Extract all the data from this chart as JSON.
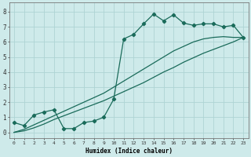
{
  "xlabel": "Humidex (Indice chaleur)",
  "bg_color": "#ceeaea",
  "grid_color": "#aed4d4",
  "line_color": "#1a6b5a",
  "xlim": [
    -0.5,
    23.5
  ],
  "ylim": [
    -0.4,
    8.6
  ],
  "xticks": [
    0,
    1,
    2,
    3,
    4,
    5,
    6,
    7,
    8,
    9,
    10,
    11,
    12,
    13,
    14,
    15,
    16,
    17,
    18,
    19,
    20,
    21,
    22,
    23
  ],
  "yticks": [
    0,
    1,
    2,
    3,
    4,
    5,
    6,
    7,
    8
  ],
  "line1_x": [
    0,
    1,
    2,
    3,
    4,
    5,
    6,
    7,
    8,
    9,
    10,
    11,
    12,
    13,
    14,
    15,
    16,
    17,
    18,
    19,
    20,
    21,
    22,
    23
  ],
  "line1_y": [
    0.65,
    0.45,
    1.15,
    1.35,
    1.5,
    0.25,
    0.25,
    0.65,
    0.75,
    1.0,
    2.2,
    6.2,
    6.5,
    7.2,
    7.85,
    7.4,
    7.8,
    7.25,
    7.1,
    7.2,
    7.2,
    7.0,
    7.1,
    6.3
  ],
  "line2_x": [
    0,
    1,
    2,
    3,
    4,
    5,
    6,
    7,
    8,
    9,
    10,
    11,
    12,
    13,
    14,
    15,
    16,
    17,
    18,
    19,
    20,
    21,
    22,
    23
  ],
  "line2_y": [
    0.0,
    0.1,
    0.3,
    0.55,
    0.85,
    1.1,
    1.35,
    1.6,
    1.85,
    2.1,
    2.4,
    2.7,
    3.0,
    3.3,
    3.65,
    4.0,
    4.3,
    4.65,
    4.95,
    5.25,
    5.5,
    5.75,
    6.0,
    6.3
  ],
  "line3_x": [
    0,
    1,
    2,
    3,
    4,
    5,
    6,
    7,
    8,
    9,
    10,
    11,
    12,
    13,
    14,
    15,
    16,
    17,
    18,
    19,
    20,
    21,
    22,
    23
  ],
  "line3_y": [
    0.0,
    0.2,
    0.5,
    0.8,
    1.1,
    1.4,
    1.7,
    2.0,
    2.3,
    2.6,
    3.0,
    3.4,
    3.8,
    4.2,
    4.6,
    5.0,
    5.4,
    5.7,
    6.0,
    6.2,
    6.3,
    6.35,
    6.3,
    6.3
  ]
}
